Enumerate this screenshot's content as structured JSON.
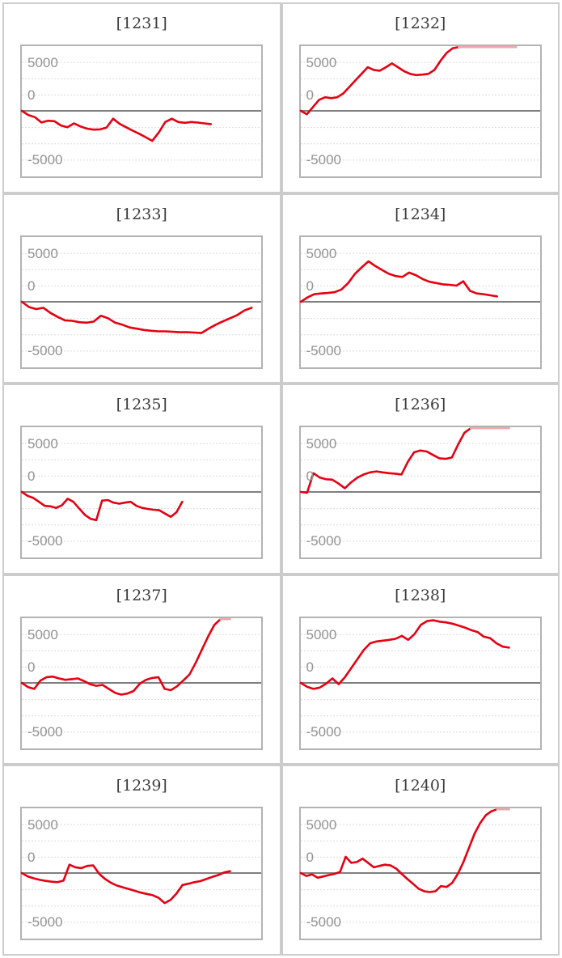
{
  "page": {
    "background": "#ffffff",
    "description": "grid of 10 line charts (slump graphs), 2 columns x 5 rows"
  },
  "style": {
    "panel_border_color": "#cccccc",
    "plot_border_color": "#b3b3b3",
    "grid_color": "#dcdcdc",
    "zero_line_color": "#7f7f7f",
    "tick_label_color": "#929292",
    "title_color": "#3c3c3c",
    "line_color": "#e60012",
    "cap_line_color": "#eba9ab"
  },
  "axis": {
    "tick_labels": [
      "5000",
      "0",
      "-5000"
    ],
    "yticks": [
      5000,
      0,
      -5000
    ],
    "ylim": [
      -6600,
      6600
    ],
    "grid": "dotted horizontal lines, zero axis solid dark gray"
  },
  "chart_data": [
    {
      "type": "line",
      "title": "[1231]",
      "x_end_fraction": 0.79,
      "cap_end_fraction": null,
      "values": [
        0,
        -430,
        -650,
        -1200,
        -1020,
        -1070,
        -1510,
        -1690,
        -1290,
        -1610,
        -1830,
        -1930,
        -1910,
        -1720,
        -810,
        -1340,
        -1690,
        -2040,
        -2360,
        -2720,
        -3090,
        -2230,
        -1150,
        -810,
        -1150,
        -1230,
        -1150,
        -1210,
        -1290,
        -1370
      ]
    },
    {
      "type": "line",
      "title": "[1232]",
      "x_end_fraction": 0.66,
      "cap_end_fraction": 0.9,
      "values": [
        0,
        -350,
        380,
        1130,
        1400,
        1310,
        1400,
        1800,
        2470,
        3140,
        3810,
        4490,
        4220,
        4130,
        4490,
        4890,
        4490,
        4080,
        3810,
        3680,
        3730,
        3810,
        4220,
        5160,
        5970,
        6450,
        6600
      ]
    },
    {
      "type": "line",
      "title": "[1233]",
      "x_end_fraction": 0.96,
      "cap_end_fraction": null,
      "values": [
        0,
        -540,
        -750,
        -620,
        -1150,
        -1560,
        -1910,
        -1960,
        -2100,
        -2150,
        -2040,
        -1430,
        -1690,
        -2150,
        -2360,
        -2640,
        -2770,
        -2900,
        -2980,
        -3040,
        -3040,
        -3090,
        -3130,
        -3130,
        -3170,
        -3220,
        -2770,
        -2360,
        -2020,
        -1690,
        -1370,
        -890,
        -620
      ]
    },
    {
      "type": "line",
      "title": "[1234]",
      "x_end_fraction": 0.82,
      "cap_end_fraction": null,
      "values": [
        0,
        460,
        780,
        860,
        910,
        990,
        1270,
        1930,
        2880,
        3550,
        4170,
        3680,
        3280,
        2880,
        2660,
        2560,
        3010,
        2740,
        2340,
        2070,
        1930,
        1800,
        1750,
        1670,
        2120,
        1130,
        860,
        780,
        670,
        560
      ]
    },
    {
      "type": "line",
      "title": "[1235]",
      "x_end_fraction": 0.67,
      "cap_end_fraction": null,
      "values": [
        0,
        -400,
        -620,
        -1020,
        -1430,
        -1480,
        -1640,
        -1370,
        -700,
        -1020,
        -1690,
        -2360,
        -2770,
        -2900,
        -890,
        -830,
        -1100,
        -1210,
        -1100,
        -1020,
        -1430,
        -1640,
        -1750,
        -1830,
        -1880,
        -2230,
        -2560,
        -2100,
        -1020
      ]
    },
    {
      "type": "line",
      "title": "[1236]",
      "x_end_fraction": 0.71,
      "cap_end_fraction": 0.87,
      "values": [
        0,
        -80,
        1930,
        1480,
        1310,
        1270,
        860,
        380,
        990,
        1480,
        1800,
        2020,
        2120,
        2020,
        1930,
        1880,
        1800,
        3090,
        4080,
        4270,
        4170,
        3810,
        3470,
        3410,
        3550,
        4890,
        6100,
        6600
      ]
    },
    {
      "type": "line",
      "title": "[1237]",
      "x_end_fraction": 0.83,
      "cap_end_fraction": 0.87,
      "values": [
        0,
        -430,
        -620,
        240,
        590,
        650,
        460,
        320,
        380,
        460,
        190,
        -130,
        -300,
        -210,
        -620,
        -1020,
        -1210,
        -1100,
        -830,
        -80,
        320,
        510,
        590,
        -620,
        -750,
        -350,
        240,
        860,
        2070,
        3410,
        4760,
        5970,
        6600
      ]
    },
    {
      "type": "line",
      "title": "[1238]",
      "x_end_fraction": 0.87,
      "cap_end_fraction": null,
      "values": [
        0,
        -400,
        -620,
        -480,
        -80,
        460,
        -130,
        590,
        1530,
        2470,
        3410,
        4080,
        4270,
        4350,
        4430,
        4540,
        4840,
        4430,
        5020,
        5970,
        6370,
        6450,
        6310,
        6230,
        6100,
        5910,
        5700,
        5430,
        5240,
        4760,
        4620,
        4080,
        3730,
        3630
      ]
    },
    {
      "type": "line",
      "title": "[1239]",
      "x_end_fraction": 0.87,
      "cap_end_fraction": null,
      "values": [
        0,
        -350,
        -540,
        -700,
        -810,
        -890,
        -940,
        -780,
        860,
        590,
        510,
        730,
        780,
        -80,
        -620,
        -1020,
        -1290,
        -1480,
        -1640,
        -1830,
        -2020,
        -2150,
        -2280,
        -2560,
        -3090,
        -2770,
        -2100,
        -1230,
        -1100,
        -940,
        -830,
        -620,
        -400,
        -210,
        60,
        190
      ]
    },
    {
      "type": "line",
      "title": "[1240]",
      "x_end_fraction": 0.82,
      "cap_end_fraction": 0.87,
      "values": [
        0,
        -300,
        -130,
        -480,
        -350,
        -210,
        -80,
        110,
        1670,
        1050,
        1130,
        1480,
        1050,
        590,
        730,
        860,
        780,
        460,
        -80,
        -620,
        -1100,
        -1610,
        -1880,
        -1960,
        -1880,
        -1340,
        -1430,
        -1020,
        -80,
        1130,
        2600,
        4080,
        5160,
        5970,
        6370,
        6600
      ]
    }
  ]
}
